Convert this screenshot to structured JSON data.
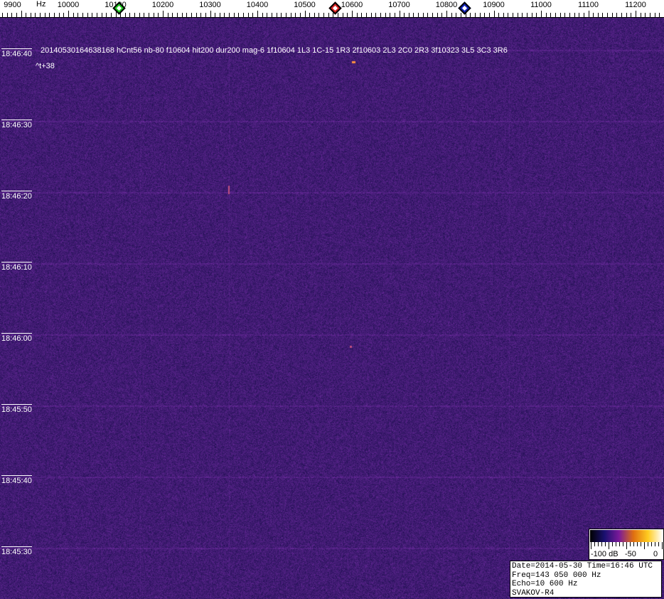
{
  "axis": {
    "unit": "Hz",
    "ticks": [
      "9900",
      "10000",
      "10100",
      "10200",
      "10300",
      "10400",
      "10500",
      "10600",
      "10700",
      "10800",
      "10900",
      "11000",
      "11100",
      "11200"
    ],
    "markers": [
      {
        "name": "green-marker",
        "freq": 10107,
        "color": "#22cc22"
      },
      {
        "name": "red-marker",
        "freq": 10564,
        "color": "#dd2222"
      },
      {
        "name": "blue-marker",
        "freq": 10838,
        "color": "#1122bb"
      }
    ]
  },
  "time_labels": [
    "18:46:40",
    "18:46:30",
    "18:46:20",
    "18:46:10",
    "18:46:00",
    "18:45:50",
    "18:45:40",
    "18:45:30"
  ],
  "detection": {
    "line": "20140530164638168 hCnt56 nb-80 f10604 hit200 dur200 mag-6 1f10604 1L3 1C-15 1R3 2f10603 2L3 2C0 2R3 3f10323 3L5 3C3 3R6",
    "offset": "^t+38"
  },
  "colorbar": {
    "min_label": "-100 dB",
    "mid_label": "-50",
    "max_label": "0",
    "colors": [
      "#000000",
      "#1a1070",
      "#7a1a9a",
      "#e07010",
      "#ffcc20",
      "#ffffff"
    ]
  },
  "infobox": {
    "date_time": "Date=2014-05-30 Time=16:46 UTC",
    "freq": "Freq=143 050 000 Hz",
    "echo": "Echo=10 600 Hz",
    "station": "SVAKOV-R4"
  },
  "colors": {
    "background": "#2a1a6e"
  }
}
